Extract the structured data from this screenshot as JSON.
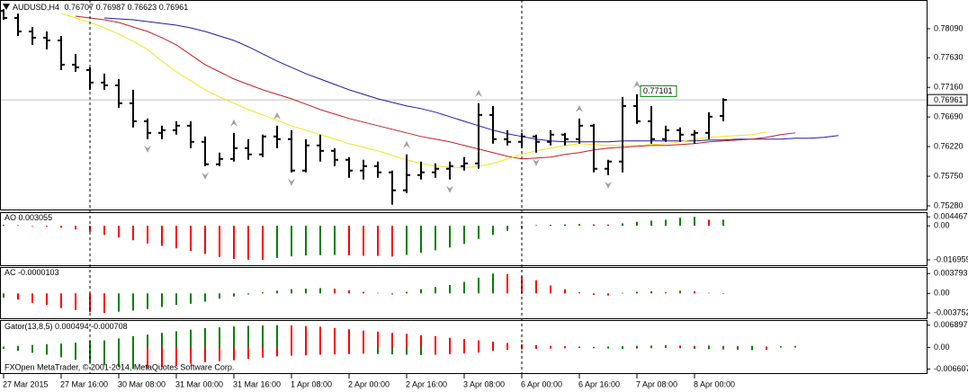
{
  "chart_data": [
    {
      "type": "ohlc",
      "title": "AUDUSD,H4",
      "categories": [
        "27 Mar 2015",
        null,
        null,
        null,
        "27 Mar 16:00",
        null,
        null,
        null,
        "30 Mar 08:00",
        null,
        null,
        null,
        "31 Mar 00:00",
        null,
        null,
        null,
        "31 Mar 16:00",
        null,
        null,
        null,
        "1 Apr 08:00",
        null,
        null,
        null,
        "2 Apr 00:00",
        null,
        null,
        null,
        "2 Apr 16:00",
        null,
        null,
        null,
        "3 Apr 08:00",
        null,
        null,
        null,
        "6 Apr 00:00",
        null,
        null,
        null,
        "6 Apr 16:00",
        null,
        null,
        null,
        "7 Apr 08:00",
        null,
        null,
        null,
        "8 Apr 00:00",
        null,
        null,
        null,
        null,
        null,
        null,
        null,
        null,
        null,
        null
      ],
      "open": [
        0.78375,
        0.78261,
        0.78047,
        0.77948,
        0.77905,
        0.7752,
        0.77435,
        0.77236,
        0.77193,
        0.76908,
        0.76623,
        0.76438,
        0.76481,
        0.76552,
        0.76296,
        0.7594,
        0.76025,
        0.76196,
        0.76096,
        0.76381,
        0.76339,
        0.7584,
        0.76239,
        0.76153,
        0.76011,
        0.7584,
        0.75911,
        0.75812,
        0.75527,
        0.75769,
        0.75812,
        0.75869,
        0.75911,
        0.75954,
        0.76723,
        0.76339,
        0.76296,
        0.76381,
        0.76296,
        0.7641,
        0.76339,
        0.76552,
        0.75869,
        0.75983,
        0.76865,
        0.76623,
        0.76339,
        0.76481,
        0.7641,
        0.76438,
        0.76707,
        null,
        null,
        null,
        null,
        null,
        null,
        null,
        null
      ],
      "high": [
        0.78403,
        0.78332,
        0.78119,
        0.78047,
        0.77976,
        0.77691,
        0.77478,
        0.77378,
        0.77293,
        0.77122,
        0.76666,
        0.76552,
        0.76623,
        0.76623,
        0.76381,
        0.76125,
        0.76438,
        0.76339,
        0.7641,
        0.76552,
        0.76481,
        0.76339,
        0.7641,
        0.76196,
        0.76054,
        0.76011,
        0.75983,
        0.7584,
        0.76096,
        0.75983,
        0.75954,
        0.75983,
        0.76054,
        0.76908,
        0.76865,
        0.76481,
        0.76438,
        0.7641,
        0.76481,
        0.76438,
        0.76666,
        0.76581,
        0.76011,
        0.77008,
        0.77051,
        0.76865,
        0.76552,
        0.76524,
        0.76481,
        0.76766,
        0.76987,
        null,
        null,
        null,
        null,
        null,
        null,
        null,
        null
      ],
      "low": [
        0.78232,
        0.77976,
        0.77834,
        0.77763,
        0.77435,
        0.77407,
        0.77122,
        0.77122,
        0.76837,
        0.76524,
        0.76339,
        0.76339,
        0.7641,
        0.76196,
        0.75911,
        0.75911,
        0.75983,
        0.76011,
        0.76054,
        0.76196,
        0.75812,
        0.75812,
        0.75983,
        0.75911,
        0.75726,
        0.75698,
        0.75726,
        0.75299,
        0.75484,
        0.75698,
        0.75726,
        0.75698,
        0.7584,
        0.75869,
        0.76267,
        0.76239,
        0.76196,
        0.76125,
        0.76239,
        0.76239,
        0.76267,
        0.75812,
        0.75769,
        0.75812,
        0.76581,
        0.76267,
        0.76296,
        0.76296,
        0.76267,
        0.76339,
        0.76623,
        null,
        null,
        null,
        null,
        null,
        null,
        null,
        null
      ],
      "close": [
        0.78261,
        0.78047,
        0.77948,
        0.77905,
        0.7752,
        0.77478,
        0.77236,
        0.77193,
        0.76908,
        0.76623,
        0.76438,
        0.76481,
        0.76552,
        0.76296,
        0.7594,
        0.76025,
        0.76196,
        0.76096,
        0.76381,
        0.76339,
        0.7584,
        0.76239,
        0.76153,
        0.76011,
        0.7584,
        0.75911,
        0.75812,
        0.75527,
        0.75769,
        0.75812,
        0.75869,
        0.75911,
        0.75954,
        0.76723,
        0.76339,
        0.76296,
        0.76381,
        0.76296,
        0.7641,
        0.76339,
        0.76552,
        0.75869,
        0.75983,
        0.76865,
        0.76623,
        0.76339,
        0.76481,
        0.7641,
        0.76438,
        0.76695,
        0.76961,
        null,
        null,
        null,
        null,
        null,
        null,
        null,
        null
      ],
      "color": "#000000",
      "lines": [
        {
          "color": "#1c1ca8",
          "values": [
            null,
            null,
            null,
            null,
            null,
            null,
            null,
            0.78261,
            0.78247,
            0.78232,
            0.78204,
            0.78176,
            0.78147,
            0.78104,
            0.78047,
            0.77976,
            0.77905,
            0.77805,
            0.77691,
            0.77577,
            0.77478,
            0.77378,
            0.77293,
            0.77207,
            0.77122,
            0.77051,
            0.76979,
            0.76922,
            0.76865,
            0.76823,
            0.76766,
            0.76695,
            0.76623,
            0.76552,
            0.76481,
            0.76424,
            0.76381,
            0.76339,
            0.7631,
            0.76296,
            0.76296,
            0.76296,
            0.76296,
            0.7631,
            0.7631,
            0.7631,
            0.7631,
            0.7631,
            0.7631,
            0.76324,
            0.76324,
            0.76339,
            0.76339,
            0.76339,
            0.76339,
            0.76353,
            0.76353,
            0.76367,
            0.76396
          ]
        },
        {
          "color": "#c81e1e",
          "values": [
            null,
            null,
            null,
            null,
            null,
            0.78289,
            0.78261,
            0.78232,
            0.7819,
            0.78119,
            0.78047,
            0.77948,
            0.77834,
            0.77677,
            0.7752,
            0.77407,
            0.77293,
            0.77207,
            0.77122,
            0.77051,
            0.76979,
            0.76894,
            0.76808,
            0.76737,
            0.76666,
            0.76609,
            0.76552,
            0.76495,
            0.76438,
            0.76381,
            0.76339,
            0.76296,
            0.76239,
            0.76182,
            0.76125,
            0.76068,
            0.76025,
            0.7604,
            0.76054,
            0.76096,
            0.76125,
            0.76168,
            0.76196,
            0.7621,
            0.76225,
            0.76239,
            0.76239,
            0.76253,
            0.76267,
            0.76296,
            0.7631,
            0.76324,
            0.76339,
            0.76367,
            0.7641,
            0.76438,
            null,
            null,
            null
          ]
        },
        {
          "color": "#f2e41c",
          "values": [
            null,
            null,
            null,
            null,
            0.78332,
            0.78261,
            0.7819,
            0.78104,
            0.78005,
            0.77891,
            0.77763,
            0.77577,
            0.77407,
            0.77264,
            0.77122,
            0.77008,
            0.76908,
            0.76808,
            0.76723,
            0.76638,
            0.76552,
            0.76481,
            0.7641,
            0.76339,
            0.76267,
            0.7621,
            0.76153,
            0.76082,
            0.76011,
            0.75954,
            0.75911,
            0.75897,
            0.75883,
            0.75911,
            0.75954,
            0.76025,
            0.76096,
            0.76153,
            0.76196,
            0.76239,
            0.76267,
            0.76253,
            0.76239,
            0.76239,
            0.76239,
            0.76253,
            0.76267,
            0.76296,
            0.76339,
            0.76367,
            0.76381,
            0.76396,
            0.7641,
            0.76452,
            null,
            null,
            null,
            null,
            null
          ]
        }
      ],
      "fractals_up": [
        16,
        19,
        28,
        33,
        40,
        44
      ],
      "fractals_down": [
        10,
        14,
        20,
        31,
        37,
        42
      ],
      "fractal_color": "#a0a0a0",
      "price_label": 0.77101,
      "price_label_color": "#008000",
      "ylim": [
        0.75237,
        0.78518
      ],
      "yticks": [
        {
          "value": 0.7809,
          "label": "0.78090"
        },
        {
          "value": 0.7763,
          "label": "0.77630"
        },
        {
          "value": 0.7716,
          "label": "0.77160"
        },
        {
          "value": 0.7669,
          "label": "0.76690"
        },
        {
          "value": 0.7622,
          "label": "0.76220"
        },
        {
          "value": 0.7575,
          "label": "0.75750"
        },
        {
          "value": 0.7528,
          "label": "0.75280"
        }
      ]
    },
    {
      "type": "histogram",
      "title": "AO",
      "values": [
        0.0005,
        0.0003,
        -0.0001,
        -0.0004,
        -0.001,
        -0.0018,
        -0.003,
        -0.0045,
        -0.0058,
        -0.0072,
        -0.0088,
        -0.01,
        -0.0112,
        -0.0125,
        -0.014,
        -0.0155,
        -0.0165,
        -0.0169,
        -0.016959,
        -0.016,
        -0.0152,
        -0.0148,
        -0.0146,
        -0.0145,
        -0.0147,
        -0.0149,
        -0.015,
        -0.0153,
        -0.0145,
        -0.0135,
        -0.0122,
        -0.0108,
        -0.009,
        -0.0065,
        -0.0045,
        -0.0025,
        -0.001,
        0.0003,
        0.0005,
        0.0007,
        0.0009,
        0.0007,
        0.0006,
        0.0012,
        0.002,
        0.0026,
        0.003,
        0.004,
        0.004467,
        0.003,
        0.003055,
        null,
        null,
        null,
        null,
        null,
        null,
        null,
        null
      ],
      "up_color": "#008000",
      "down_color": "#ff0000",
      "ylim": [
        -0.0192,
        0.0059
      ],
      "yticks": [
        0.004467,
        {
          "value": 0,
          "label": "0.00"
        },
        -0.016959
      ]
    },
    {
      "type": "histogram",
      "title": "AC",
      "values": [
        -0.0008,
        -0.0012,
        -0.0018,
        -0.0022,
        -0.0028,
        -0.0032,
        -0.0036,
        -0.003752,
        -0.0035,
        -0.0033,
        -0.003,
        -0.0026,
        -0.0022,
        -0.002,
        -0.0016,
        -0.001,
        -0.0006,
        -0.0002,
        0.0002,
        0.0005,
        0.0008,
        0.0009,
        0.001,
        0.0009,
        0.0006,
        0.0003,
        0.0001,
        -0.0002,
        0.0003,
        0.0008,
        0.0012,
        0.0016,
        0.0022,
        0.003,
        0.003793,
        0.0037,
        0.0032,
        0.0025,
        0.0015,
        0.0008,
        0.0002,
        -0.0003,
        -0.0004,
        0.0001,
        0.0003,
        0.0004,
        0.0002,
        0.0005,
        0.0004,
        0.0001,
        -1.03e-05,
        null,
        null,
        null,
        null,
        null,
        null,
        null,
        null
      ],
      "up_color": "#008000",
      "down_color": "#ff0000",
      "ylim": [
        -0.0046,
        0.0047
      ],
      "yticks": [
        0.003793,
        {
          "value": 0,
          "label": "0.00"
        },
        -0.003752
      ]
    },
    {
      "type": "gator",
      "title": "Gator(13,8,5)",
      "upper": [
        0.0003,
        0.0005,
        0.0008,
        0.001,
        0.0012,
        0.0015,
        0.002,
        0.0022,
        0.0028,
        0.0035,
        0.004,
        0.0045,
        0.005,
        0.0055,
        0.006,
        0.0062,
        0.0065,
        0.0067,
        0.0068,
        0.006897,
        0.0068,
        0.0066,
        0.0064,
        0.006,
        0.0056,
        0.0052,
        0.0049,
        0.0045,
        0.0042,
        0.0038,
        0.0035,
        0.003,
        0.0026,
        0.0022,
        0.0018,
        0.0014,
        0.001,
        0.0007,
        0.0005,
        0.0004,
        0.0003,
        0.0002,
        0.0003,
        0.0004,
        0.0005,
        0.0006,
        0.0007,
        0.0006,
        0.0005,
        0.0006,
        0.0005,
        0.0004,
        0.0005,
        0.0003,
        0.0004,
        0.000494,
        null,
        null,
        null
      ],
      "lower": [
        -0.0004,
        -0.001,
        -0.0016,
        -0.0022,
        -0.003,
        -0.0038,
        -0.0046,
        -0.0054,
        -0.006,
        -0.006607,
        -0.0064,
        -0.006,
        -0.0055,
        -0.005,
        -0.0045,
        -0.0042,
        -0.0039,
        -0.0035,
        -0.0031,
        -0.0027,
        -0.0025,
        -0.0024,
        -0.0022,
        -0.0021,
        -0.002,
        -0.0019,
        -0.002,
        -0.0021,
        -0.0022,
        -0.0023,
        -0.0022,
        -0.002,
        -0.0018,
        -0.0015,
        -0.001,
        -0.0007,
        -0.0006,
        -0.0004,
        -0.0003,
        -0.0002,
        -0.0001,
        -0.0002,
        -0.0003,
        -0.0004,
        -0.0003,
        -0.0002,
        -0.0001,
        -0.0002,
        -0.0004,
        -0.0005,
        -0.0006,
        -0.0007,
        -0.0008,
        -0.000708,
        null,
        null,
        null,
        null,
        null
      ],
      "up_color": "#008000",
      "down_color": "#ff0000",
      "ylim": [
        -0.0076,
        0.0079
      ],
      "yticks": [
        0.006897,
        {
          "value": 0,
          "label": "0.00"
        },
        -0.006607
      ]
    }
  ],
  "footer": "FXOpen MetaTrader, © 2001-2014, MetaQuotes Software Corp."
}
